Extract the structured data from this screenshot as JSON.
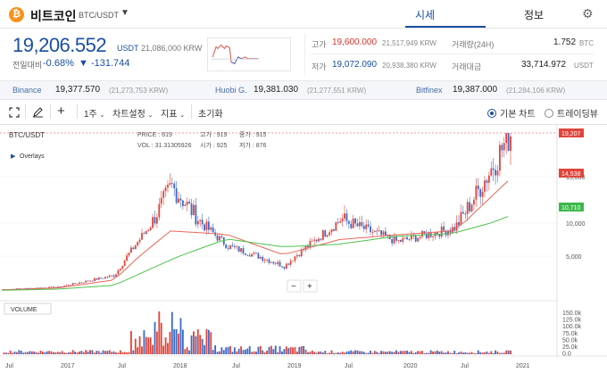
{
  "coin": {
    "badge": "₿",
    "name": "비트코인",
    "pair": "BTC/USDT",
    "caret": "▼",
    "badge_color": "#f7931a"
  },
  "tabs": {
    "market": "시세",
    "info": "정보"
  },
  "price": {
    "value": "19,206.552",
    "unit": "USDT",
    "krw": "21,086,000 KRW",
    "change_label": "전일대비",
    "change_pct": "-0.68%",
    "change_abs": "▼ -131.744"
  },
  "stats": {
    "high_label": "고가",
    "high_value": "19,600.000",
    "high_krw": "21,517,949 KRW",
    "low_label": "저가",
    "low_value": "19,072.090",
    "low_krw": "20,938,380 KRW",
    "vol_label": "거래량(24H)",
    "vol_value": "1.752",
    "vol_unit": "BTC",
    "amt_label": "거래대금",
    "amt_value": "33,714.972",
    "amt_unit": "USDT"
  },
  "exchanges": [
    {
      "name": "Binance",
      "value": "19,377.570",
      "krw": "(21,273,753 KRW)"
    },
    {
      "name": "Huobi G.",
      "value": "19,381.030",
      "krw": "(21,277,551 KRW)"
    },
    {
      "name": "Bitfinex",
      "value": "19,387.000",
      "krw": "(21,284,106 KRW)"
    }
  ],
  "toolbar": {
    "crosshair_icon": "crosshair-icon",
    "draw_icon": "pencil-icon",
    "add_icon": "plus-icon",
    "period": "1주",
    "chart_settings": "차트설정",
    "indicators": "지표",
    "reset": "초기화",
    "basic_chart": "기본 차트",
    "tradingview": "트레이딩뷰"
  },
  "chart": {
    "symbol": "BTC/USDT",
    "overlays": "Overlays",
    "volume_label": "VOLUME",
    "info_price": "PRICE : 619",
    "info_high": "고가 : 919",
    "info_close": "종가 : 915",
    "info_vol": "VOL : 31.31305926",
    "info_open": "시가 : 925",
    "info_low": "저가 : 876",
    "zoom_out": "−",
    "zoom_in": "+",
    "price_labels": [
      "15,000",
      "10,000",
      "5,000"
    ],
    "badges": {
      "current": "19,207",
      "ma_short": "14,538",
      "ma_long": "10,710"
    },
    "volume_labels": [
      "150.0k",
      "125.0k",
      "100.0k",
      "75.0k",
      "50.0k",
      "25.0k",
      "0.0"
    ],
    "time_labels": [
      "Jul",
      "2017",
      "Jul",
      "2018",
      "Jul",
      "2019",
      "Jul",
      "2020",
      "Jul",
      "2021"
    ],
    "colors": {
      "up": "#e0463c",
      "down": "#3f6bc6",
      "ma_short": "#e8675b",
      "ma_long": "#4ec14e"
    }
  },
  "chart_data": {
    "type": "line",
    "x": [
      "2016-07",
      "2017-01",
      "2017-07",
      "2018-01",
      "2018-07",
      "2019-01",
      "2019-07",
      "2020-01",
      "2020-07",
      "2021-01"
    ],
    "series": [
      {
        "values": [
          650,
          970,
          2500,
          14000,
          6500,
          3700,
          10500,
          7200,
          9200,
          19207
        ]
      },
      {
        "values": [
          600,
          850,
          1900,
          8800,
          8300,
          5200,
          7500,
          8200,
          8800,
          14538
        ]
      },
      {
        "values": [
          550,
          700,
          1200,
          4500,
          7600,
          6400,
          6800,
          8000,
          8400,
          10710
        ]
      }
    ],
    "ylim": [
      0,
      20000
    ]
  }
}
